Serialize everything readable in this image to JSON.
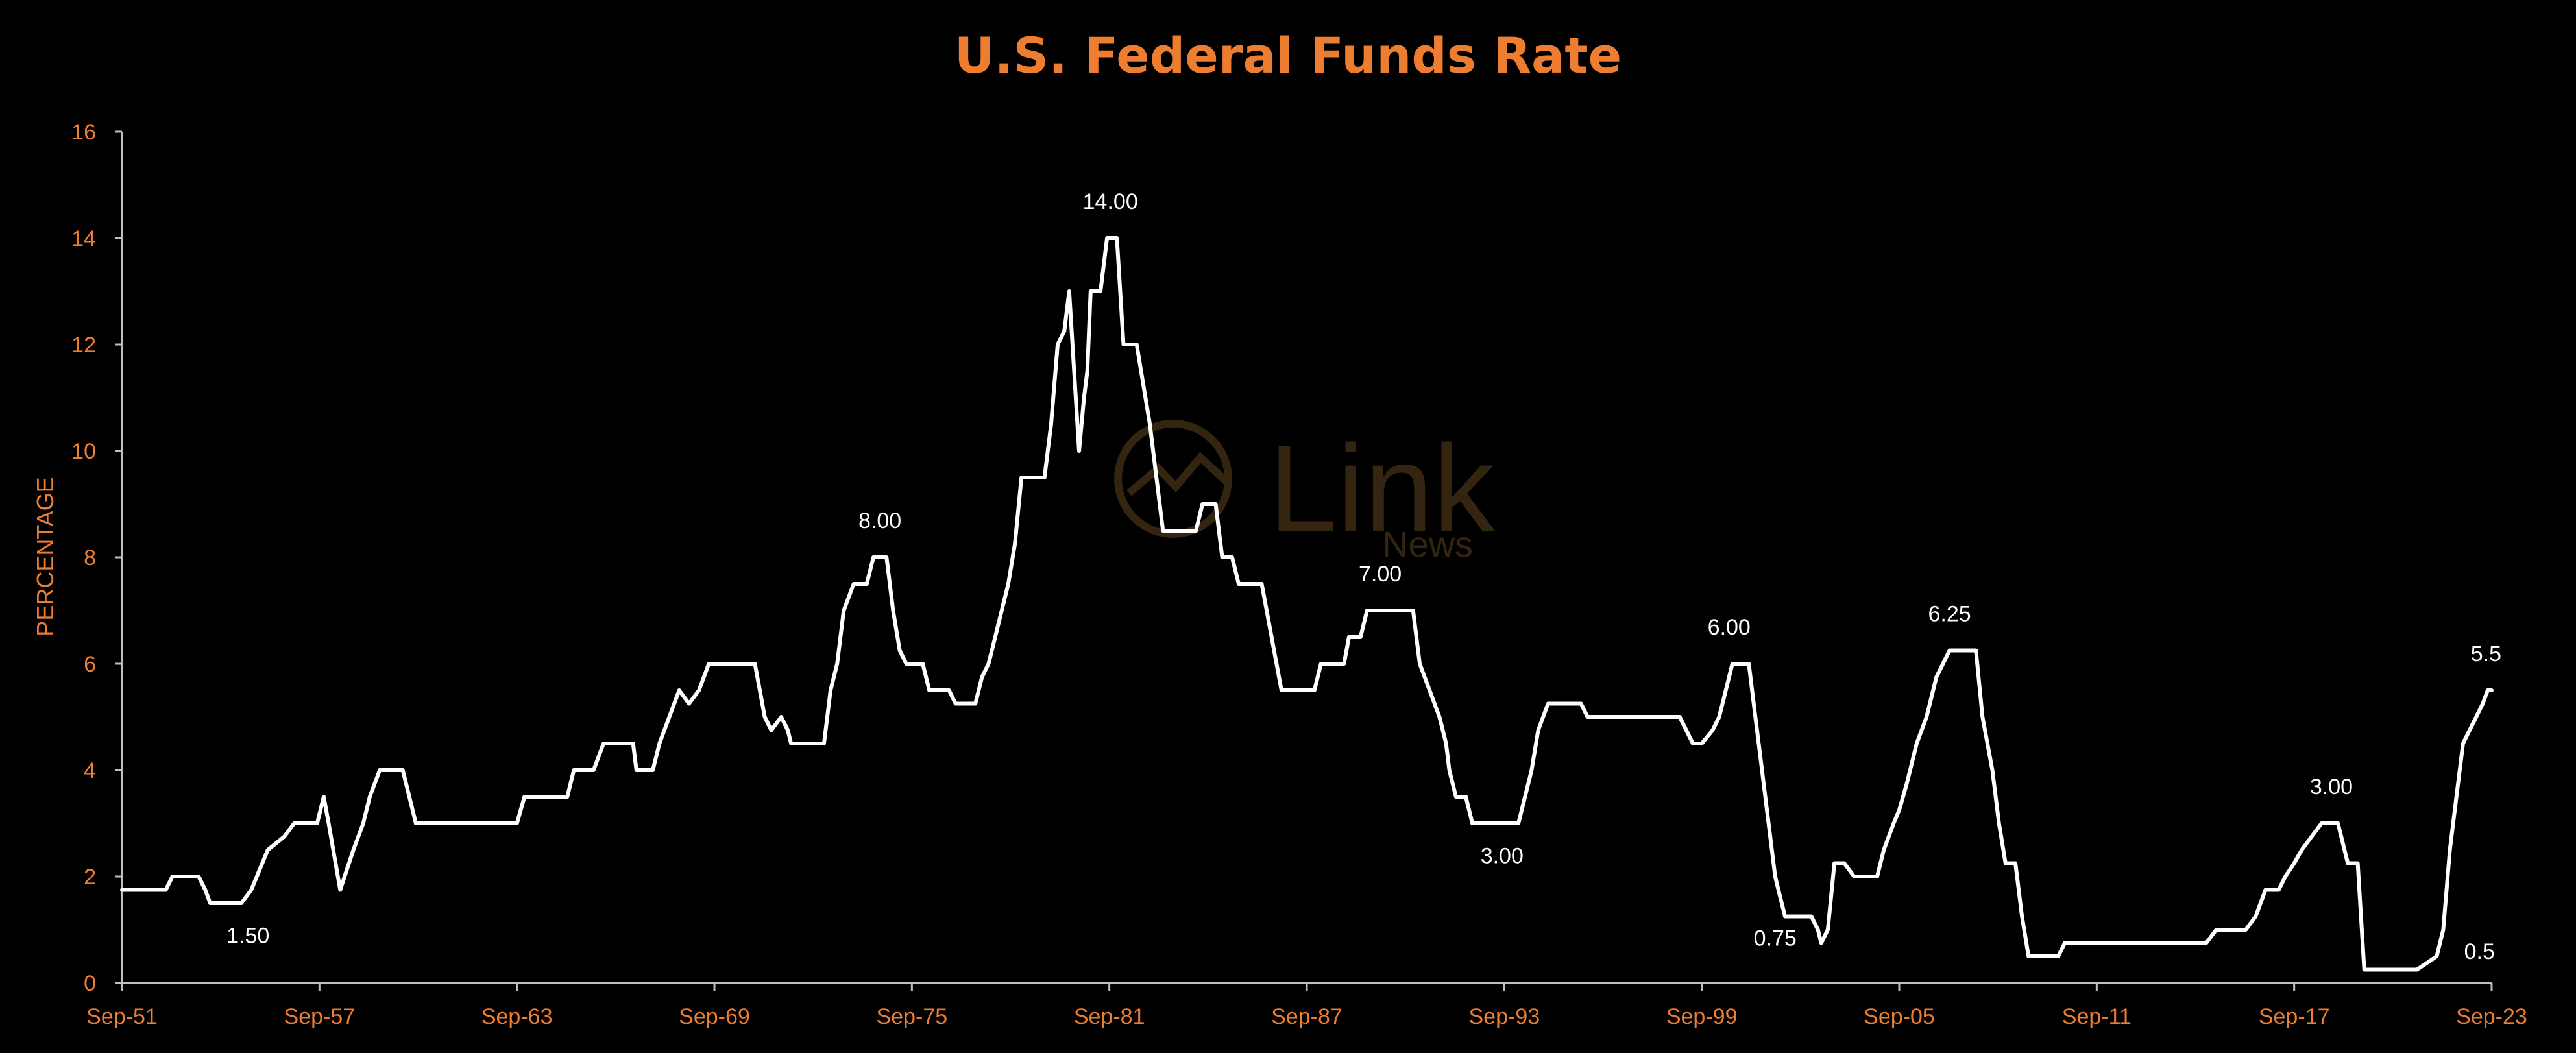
{
  "colors": {
    "background": "#000000",
    "accent": "#ED7D31",
    "line": "#FFFFFF",
    "watermark": "#3A2A12"
  },
  "watermark": {
    "logo_text": "Link",
    "sub_text": "News"
  },
  "chart_data": {
    "type": "line",
    "title": "U.S. Federal Funds Rate",
    "ylabel": "PERCENTAGE",
    "xlabel": "",
    "ylim": [
      0,
      16
    ],
    "y_ticks": [
      "0",
      "2",
      "4",
      "6",
      "8",
      "10",
      "12",
      "14",
      "16"
    ],
    "xlim": [
      1951.67,
      2023.67
    ],
    "x_ticks": [
      {
        "x": 1951.67,
        "label": "Sep-51"
      },
      {
        "x": 1957.67,
        "label": "Sep-57"
      },
      {
        "x": 1963.67,
        "label": "Sep-63"
      },
      {
        "x": 1969.67,
        "label": "Sep-69"
      },
      {
        "x": 1975.67,
        "label": "Sep-75"
      },
      {
        "x": 1981.67,
        "label": "Sep-81"
      },
      {
        "x": 1987.67,
        "label": "Sep-87"
      },
      {
        "x": 1993.67,
        "label": "Sep-93"
      },
      {
        "x": 1999.67,
        "label": "Sep-99"
      },
      {
        "x": 2005.67,
        "label": "Sep-05"
      },
      {
        "x": 2011.67,
        "label": "Sep-11"
      },
      {
        "x": 2017.67,
        "label": "Sep-17"
      },
      {
        "x": 2023.67,
        "label": "Sep-23"
      }
    ],
    "grid": false,
    "series": [
      {
        "points": [
          [
            1951.67,
            1.75
          ],
          [
            1953.0,
            1.75
          ],
          [
            1953.2,
            2.0
          ],
          [
            1954.0,
            2.0
          ],
          [
            1954.2,
            1.75
          ],
          [
            1954.35,
            1.5
          ],
          [
            1955.3,
            1.5
          ],
          [
            1955.6,
            1.75
          ],
          [
            1956.1,
            2.5
          ],
          [
            1956.6,
            2.75
          ],
          [
            1956.9,
            3.0
          ],
          [
            1957.6,
            3.0
          ],
          [
            1957.8,
            3.5
          ],
          [
            1957.95,
            3.0
          ],
          [
            1958.3,
            1.75
          ],
          [
            1958.7,
            2.5
          ],
          [
            1959.0,
            3.0
          ],
          [
            1959.2,
            3.5
          ],
          [
            1959.5,
            4.0
          ],
          [
            1960.2,
            4.0
          ],
          [
            1960.4,
            3.5
          ],
          [
            1960.6,
            3.0
          ],
          [
            1961.0,
            3.0
          ],
          [
            1961.7,
            3.0
          ],
          [
            1962.4,
            3.0
          ],
          [
            1963.0,
            3.0
          ],
          [
            1963.67,
            3.0
          ],
          [
            1963.9,
            3.5
          ],
          [
            1965.2,
            3.5
          ],
          [
            1965.4,
            4.0
          ],
          [
            1966.0,
            4.0
          ],
          [
            1966.3,
            4.5
          ],
          [
            1967.2,
            4.5
          ],
          [
            1967.3,
            4.0
          ],
          [
            1967.8,
            4.0
          ],
          [
            1968.0,
            4.5
          ],
          [
            1968.3,
            5.0
          ],
          [
            1968.6,
            5.5
          ],
          [
            1968.9,
            5.25
          ],
          [
            1969.2,
            5.5
          ],
          [
            1969.5,
            6.0
          ],
          [
            1970.0,
            6.0
          ],
          [
            1970.9,
            6.0
          ],
          [
            1971.2,
            5.0
          ],
          [
            1971.4,
            4.75
          ],
          [
            1971.7,
            5.0
          ],
          [
            1971.9,
            4.75
          ],
          [
            1972.0,
            4.5
          ],
          [
            1973.0,
            4.5
          ],
          [
            1973.2,
            5.5
          ],
          [
            1973.4,
            6.0
          ],
          [
            1973.6,
            7.0
          ],
          [
            1973.9,
            7.5
          ],
          [
            1974.3,
            7.5
          ],
          [
            1974.5,
            8.0
          ],
          [
            1974.9,
            8.0
          ],
          [
            1975.1,
            7.0
          ],
          [
            1975.3,
            6.25
          ],
          [
            1975.5,
            6.0
          ],
          [
            1976.0,
            6.0
          ],
          [
            1976.2,
            5.5
          ],
          [
            1976.8,
            5.5
          ],
          [
            1977.0,
            5.25
          ],
          [
            1977.6,
            5.25
          ],
          [
            1977.8,
            5.75
          ],
          [
            1978.0,
            6.0
          ],
          [
            1978.2,
            6.5
          ],
          [
            1978.4,
            7.0
          ],
          [
            1978.6,
            7.5
          ],
          [
            1978.8,
            8.25
          ],
          [
            1979.0,
            9.5
          ],
          [
            1979.7,
            9.5
          ],
          [
            1979.9,
            10.5
          ],
          [
            1980.1,
            12.0
          ],
          [
            1980.3,
            12.25
          ],
          [
            1980.45,
            13.0
          ],
          [
            1980.6,
            11.5
          ],
          [
            1980.75,
            10.0
          ],
          [
            1980.9,
            11.0
          ],
          [
            1981.0,
            11.5
          ],
          [
            1981.1,
            13.0
          ],
          [
            1981.4,
            13.0
          ],
          [
            1981.6,
            14.0
          ],
          [
            1981.9,
            14.0
          ],
          [
            1982.1,
            12.0
          ],
          [
            1982.5,
            12.0
          ],
          [
            1982.9,
            10.5
          ],
          [
            1983.3,
            8.5
          ],
          [
            1984.3,
            8.5
          ],
          [
            1984.5,
            9.0
          ],
          [
            1984.9,
            9.0
          ],
          [
            1985.1,
            8.0
          ],
          [
            1985.4,
            8.0
          ],
          [
            1985.6,
            7.5
          ],
          [
            1986.3,
            7.5
          ],
          [
            1986.6,
            6.5
          ],
          [
            1986.9,
            5.5
          ],
          [
            1987.9,
            5.5
          ],
          [
            1988.1,
            6.0
          ],
          [
            1988.8,
            6.0
          ],
          [
            1988.95,
            6.5
          ],
          [
            1989.3,
            6.5
          ],
          [
            1989.5,
            7.0
          ],
          [
            1990.4,
            7.0
          ],
          [
            1990.9,
            7.0
          ],
          [
            1991.1,
            6.0
          ],
          [
            1991.4,
            5.5
          ],
          [
            1991.7,
            5.0
          ],
          [
            1991.9,
            4.5
          ],
          [
            1992.0,
            4.0
          ],
          [
            1992.2,
            3.5
          ],
          [
            1992.5,
            3.5
          ],
          [
            1992.7,
            3.0
          ],
          [
            1993.67,
            3.0
          ],
          [
            1994.1,
            3.0
          ],
          [
            1994.3,
            3.5
          ],
          [
            1994.5,
            4.0
          ],
          [
            1994.7,
            4.75
          ],
          [
            1995.0,
            5.25
          ],
          [
            1995.5,
            5.25
          ],
          [
            1996.0,
            5.25
          ],
          [
            1996.2,
            5.0
          ],
          [
            1997.5,
            5.0
          ],
          [
            1998.0,
            5.0
          ],
          [
            1998.5,
            5.0
          ],
          [
            1999.0,
            5.0
          ],
          [
            1999.2,
            4.75
          ],
          [
            1999.4,
            4.5
          ],
          [
            1999.67,
            4.5
          ],
          [
            2000.0,
            4.75
          ],
          [
            2000.2,
            5.0
          ],
          [
            2000.4,
            5.5
          ],
          [
            2000.6,
            6.0
          ],
          [
            2001.1,
            6.0
          ],
          [
            2001.3,
            5.0
          ],
          [
            2001.5,
            4.0
          ],
          [
            2001.7,
            3.0
          ],
          [
            2001.9,
            2.0
          ],
          [
            2002.0,
            1.75
          ],
          [
            2002.2,
            1.25
          ],
          [
            2002.6,
            1.25
          ],
          [
            2003.0,
            1.25
          ],
          [
            2003.2,
            1.0
          ],
          [
            2003.3,
            0.75
          ],
          [
            2003.5,
            1.0
          ],
          [
            2003.7,
            2.25
          ],
          [
            2004.0,
            2.25
          ],
          [
            2004.3,
            2.0
          ],
          [
            2004.6,
            2.0
          ],
          [
            2005.0,
            2.0
          ],
          [
            2005.2,
            2.5
          ],
          [
            2005.5,
            3.0
          ],
          [
            2005.67,
            3.25
          ],
          [
            2005.9,
            3.75
          ],
          [
            2006.2,
            4.5
          ],
          [
            2006.5,
            5.0
          ],
          [
            2006.8,
            5.75
          ],
          [
            2007.2,
            6.25
          ],
          [
            2007.7,
            6.25
          ],
          [
            2008.0,
            6.25
          ],
          [
            2008.2,
            5.0
          ],
          [
            2008.5,
            4.0
          ],
          [
            2008.7,
            3.0
          ],
          [
            2008.9,
            2.25
          ],
          [
            2009.2,
            2.25
          ],
          [
            2009.4,
            1.25
          ],
          [
            2009.6,
            0.5
          ],
          [
            2010.5,
            0.5
          ],
          [
            2010.7,
            0.75
          ],
          [
            2015.0,
            0.75
          ],
          [
            2015.3,
            1.0
          ],
          [
            2016.2,
            1.0
          ],
          [
            2016.5,
            1.25
          ],
          [
            2016.8,
            1.75
          ],
          [
            2017.2,
            1.75
          ],
          [
            2017.4,
            2.0
          ],
          [
            2017.67,
            2.25
          ],
          [
            2017.9,
            2.5
          ],
          [
            2018.2,
            2.75
          ],
          [
            2018.5,
            3.0
          ],
          [
            2019.0,
            3.0
          ],
          [
            2019.3,
            2.25
          ],
          [
            2019.6,
            2.25
          ],
          [
            2019.8,
            0.25
          ],
          [
            2020.0,
            0.25
          ],
          [
            2021.0,
            0.25
          ],
          [
            2021.4,
            0.25
          ],
          [
            2022.0,
            0.5
          ],
          [
            2022.2,
            1.0
          ],
          [
            2022.4,
            2.5
          ],
          [
            2022.6,
            3.5
          ],
          [
            2022.8,
            4.5
          ],
          [
            2023.0,
            4.75
          ],
          [
            2023.2,
            5.0
          ],
          [
            2023.4,
            5.25
          ],
          [
            2023.55,
            5.5
          ],
          [
            2023.67,
            5.5
          ]
        ]
      }
    ],
    "annotations": [
      {
        "text": "1.50",
        "x": 1955.5,
        "y": 0.75
      },
      {
        "text": "8.00",
        "x": 1974.7,
        "y": 8.55
      },
      {
        "text": "14.00",
        "x": 1981.7,
        "y": 14.55
      },
      {
        "text": "7.00",
        "x": 1989.9,
        "y": 7.55
      },
      {
        "text": "3.00",
        "x": 1993.6,
        "y": 2.25
      },
      {
        "text": "6.00",
        "x": 2000.5,
        "y": 6.55
      },
      {
        "text": "0.75",
        "x": 2001.9,
        "y": 0.7
      },
      {
        "text": "6.25",
        "x": 2007.2,
        "y": 6.8
      },
      {
        "text": "3.00",
        "x": 2018.8,
        "y": 3.55
      },
      {
        "text": "5.5",
        "x": 2023.5,
        "y": 6.05
      },
      {
        "text": "0.5",
        "x": 2023.3,
        "y": 0.45
      }
    ]
  }
}
